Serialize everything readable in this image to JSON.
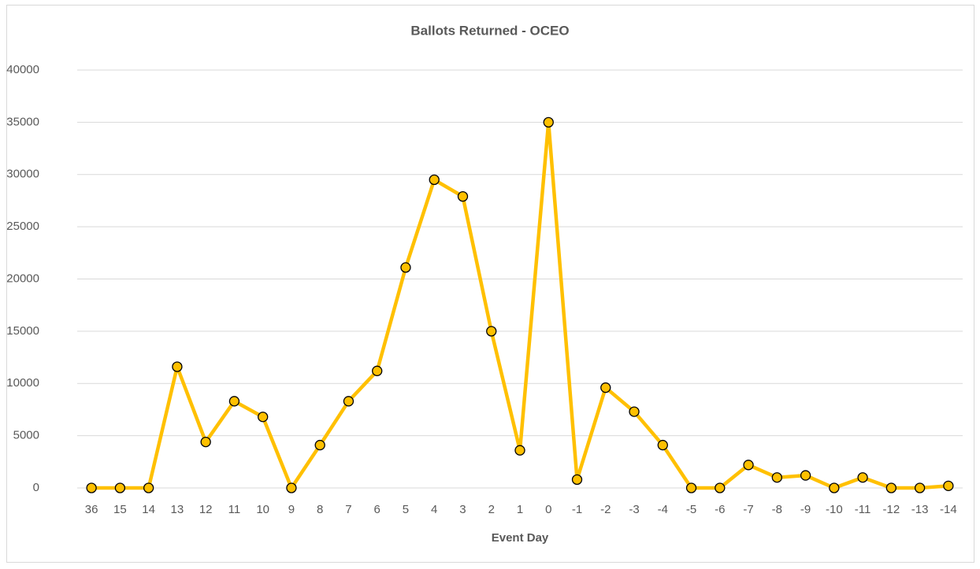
{
  "chart_data": {
    "type": "line",
    "title": "Ballots Returned - OCEO",
    "x_label": "Event Day",
    "categories": [
      "36",
      "15",
      "14",
      "13",
      "12",
      "11",
      "10",
      "9",
      "8",
      "7",
      "6",
      "5",
      "4",
      "3",
      "2",
      "1",
      "0",
      "-1",
      "-2",
      "-3",
      "-4",
      "-5",
      "-6",
      "-7",
      "-8",
      "-9",
      "-10",
      "-11",
      "-12",
      "-13",
      "-14"
    ],
    "series": [
      {
        "name": "Ballots Returned",
        "color": "#ffc000",
        "values": [
          0,
          0,
          0,
          11600,
          4400,
          8300,
          6800,
          0,
          4100,
          8300,
          11200,
          21100,
          29500,
          27900,
          15000,
          3600,
          35000,
          800,
          9600,
          7300,
          4100,
          0,
          0,
          2200,
          1000,
          1200,
          0,
          1000,
          0,
          0,
          200
        ]
      }
    ],
    "ylim": [
      0,
      40000
    ],
    "yticks": [
      0,
      5000,
      10000,
      15000,
      20000,
      25000,
      30000,
      35000,
      40000
    ],
    "grid": true
  }
}
